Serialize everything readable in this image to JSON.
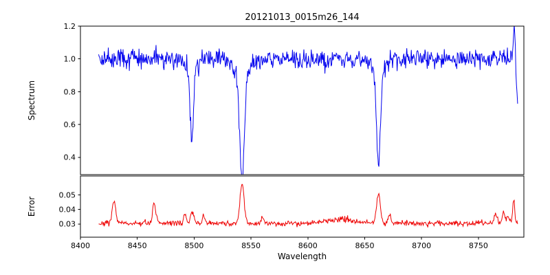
{
  "chart_data": {
    "type": "line",
    "title": "20121013_0015m26_144",
    "xlabel": "Wavelength",
    "xlim": [
      8400,
      8790
    ],
    "xticks": {
      "values": [
        8400,
        8450,
        8500,
        8550,
        8600,
        8650,
        8700,
        8750
      ],
      "labels": [
        "8400",
        "8450",
        "8500",
        "8550",
        "8600",
        "8650",
        "8700",
        "8750"
      ]
    },
    "x_data_range": [
      8416,
      8784.5
    ],
    "x_step": 0.5,
    "grid": false,
    "legend": false,
    "panels": [
      {
        "name": "spectrum",
        "ylabel": "Spectrum",
        "ylim": [
          0.295,
          1.2
        ],
        "yticks": {
          "values": [
            0.4,
            0.6,
            0.8,
            1.0,
            1.2
          ],
          "labels": [
            "0.4",
            "0.6",
            "0.8",
            "1.0",
            "1.2"
          ]
        },
        "color": "#0000ee",
        "line_width": 1
      },
      {
        "name": "error",
        "ylabel": "Error",
        "ylim": [
          0.021,
          0.063
        ],
        "yticks": {
          "values": [
            0.03,
            0.04,
            0.05
          ],
          "labels": [
            "0.03",
            "0.04",
            "0.05"
          ]
        },
        "color": "#ee0000",
        "line_width": 1
      }
    ],
    "spectrum_model": {
      "description": "Noisy continuum near 1.0 with three deep absorption lines (Ca II triplet) and an up/down artifact at the red edge",
      "continuum": 1.0,
      "noise_sigma": 0.028,
      "seed": 42,
      "absorption_lines": [
        {
          "center": 8498.0,
          "depth": 0.42,
          "width": 1.4,
          "wing_depth": 0.08,
          "wing_width": 4.0
        },
        {
          "center": 8542.1,
          "depth": 0.6,
          "width": 2.0,
          "wing_depth": 0.12,
          "wing_width": 6.0
        },
        {
          "center": 8662.1,
          "depth": 0.54,
          "width": 1.7,
          "wing_depth": 0.09,
          "wing_width": 5.0
        }
      ],
      "edge_features": [
        {
          "center": 8781.5,
          "amp": 0.17,
          "width": 0.8
        },
        {
          "center": 8784.3,
          "amp": -0.24,
          "width": 0.9
        }
      ]
    },
    "error_model": {
      "description": "Error spectrum near 0.03 with narrow spikes at the absorption-line wavelengths and near both edges",
      "baseline": 0.0305,
      "noise_sigma": 0.0009,
      "seed": 7,
      "peaks": [
        {
          "center": 8429.5,
          "amp": 0.016,
          "width": 1.4
        },
        {
          "center": 8464.9,
          "amp": 0.0135,
          "width": 1.4
        },
        {
          "center": 8491.9,
          "amp": 0.006,
          "width": 1.2
        },
        {
          "center": 8498.2,
          "amp": 0.0085,
          "width": 1.3
        },
        {
          "center": 8508.5,
          "amp": 0.005,
          "width": 1.1
        },
        {
          "center": 8542.1,
          "amp": 0.027,
          "width": 1.8
        },
        {
          "center": 8560.0,
          "amp": 0.004,
          "width": 1.2
        },
        {
          "center": 8630.0,
          "amp": 0.0025,
          "width": 14.0
        },
        {
          "center": 8662.1,
          "amp": 0.021,
          "width": 1.6
        },
        {
          "center": 8672.0,
          "amp": 0.006,
          "width": 1.2
        },
        {
          "center": 8765.0,
          "amp": 0.006,
          "width": 1.3
        },
        {
          "center": 8772.0,
          "amp": 0.008,
          "width": 1.2
        },
        {
          "center": 8776.0,
          "amp": 0.0055,
          "width": 1.0
        },
        {
          "center": 8781.0,
          "amp": 0.016,
          "width": 0.9
        }
      ]
    }
  }
}
